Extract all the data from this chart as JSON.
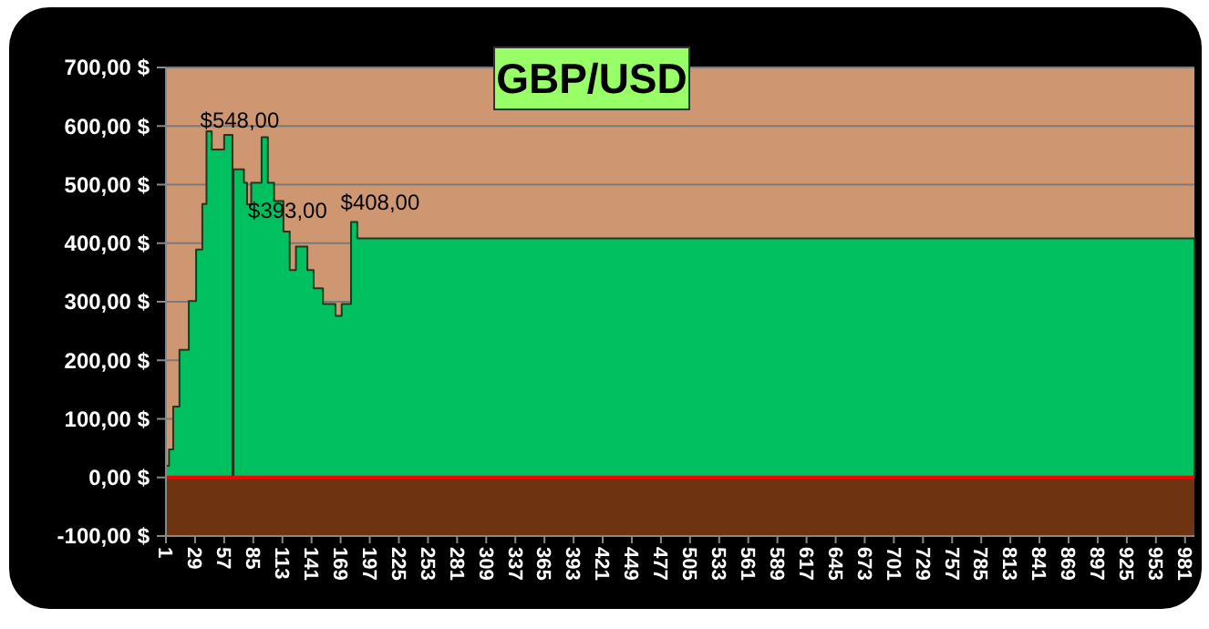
{
  "chart_data": {
    "type": "area",
    "title": "GBP/USD",
    "x": [
      1,
      4,
      4,
      8,
      8,
      14,
      14,
      23,
      23,
      30,
      30,
      36,
      36,
      40,
      40,
      45,
      45,
      57,
      57,
      65,
      65,
      66,
      66,
      76,
      76,
      79,
      79,
      83,
      83,
      93,
      93,
      99,
      99,
      105,
      105,
      114,
      114,
      120,
      120,
      126,
      126,
      137,
      137,
      143,
      143,
      152,
      152,
      164,
      164,
      170,
      170,
      179,
      179,
      185,
      185,
      990
    ],
    "series": [
      {
        "color": "#00c060",
        "values": [
          20,
          20,
          48,
          48,
          121,
          121,
          218,
          218,
          301,
          301,
          389,
          389,
          467,
          467,
          591,
          591,
          560,
          560,
          585,
          585,
          0,
          0,
          526,
          526,
          503,
          503,
          466,
          466,
          503,
          503,
          581,
          581,
          503,
          503,
          472,
          472,
          420,
          420,
          354,
          354,
          394,
          394,
          354,
          354,
          323,
          323,
          296,
          296,
          276,
          276,
          296,
          296,
          436,
          436,
          408,
          408
        ]
      }
    ],
    "xlim": [
      1,
      990
    ],
    "xticks": [
      1,
      29,
      57,
      85,
      113,
      141,
      169,
      197,
      225,
      253,
      281,
      309,
      337,
      365,
      393,
      421,
      449,
      477,
      505,
      533,
      561,
      589,
      617,
      645,
      673,
      701,
      729,
      757,
      785,
      813,
      841,
      869,
      897,
      925,
      953,
      981
    ],
    "ylim": [
      -100,
      700
    ],
    "yticks": [
      {
        "value": -100,
        "label": "-100,00 $"
      },
      {
        "value": 0,
        "label": "0,00 $"
      },
      {
        "value": 100,
        "label": "100,00 $"
      },
      {
        "value": 200,
        "label": "200,00 $"
      },
      {
        "value": 300,
        "label": "300,00 $"
      },
      {
        "value": 400,
        "label": "400,00 $"
      },
      {
        "value": 500,
        "label": "500,00 $"
      },
      {
        "value": 600,
        "label": "600,00 $"
      },
      {
        "value": 700,
        "label": "700,00 $"
      }
    ],
    "grid": "y",
    "ref_lines": [
      {
        "axis": "y",
        "value": 0,
        "color": "#ff0000"
      }
    ],
    "bands": [
      {
        "axis": "y",
        "from": 0,
        "to": 700,
        "color": "#cf9672"
      },
      {
        "axis": "y",
        "from": -100,
        "to": 0,
        "color": "#6e3412"
      }
    ],
    "annotations": [
      {
        "text": "$548,00",
        "x": 72,
        "y": 548
      },
      {
        "text": "$393,00",
        "x": 118,
        "y": 393
      },
      {
        "text": "$408,00",
        "x": 207,
        "y": 408
      }
    ]
  }
}
